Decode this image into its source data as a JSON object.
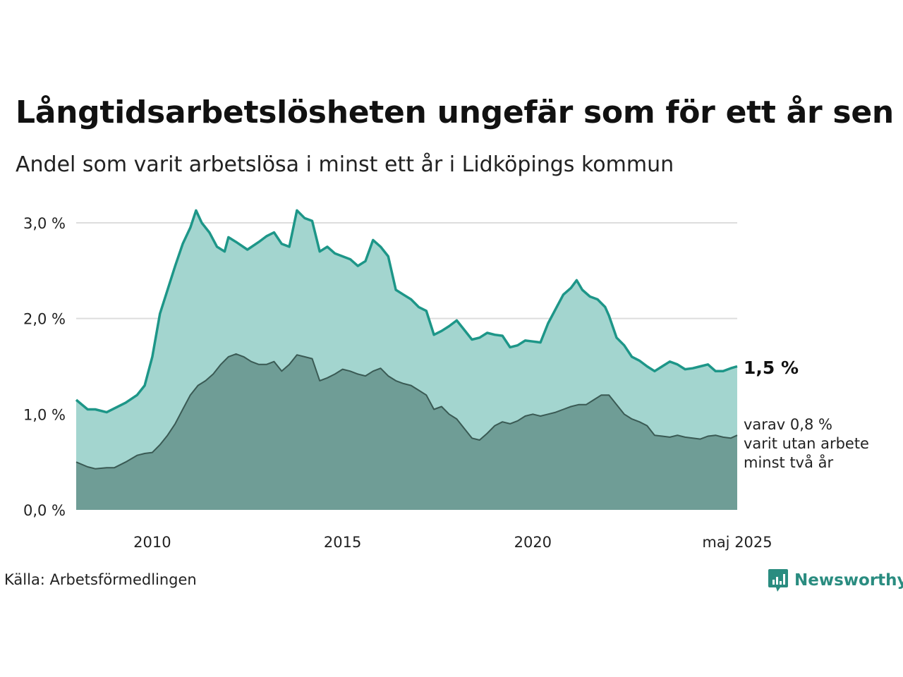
{
  "title": "Långtidsarbetslösheten ungefär som för ett år sen",
  "subtitle": "Andel som varit arbetslösa i minst ett år i Lidköpings kommun",
  "source": "Källa: Arbetsförmedlingen",
  "brand": {
    "name": "Newsworthy",
    "icon": "newsworthy-logo-icon",
    "color": "#2a8c80"
  },
  "annotations": {
    "last_value": "1,5 %",
    "note_lines": [
      "varav 0,8 %",
      "varit utan arbete",
      "minst två år"
    ]
  },
  "colors": {
    "series1_line": "#1d9688",
    "series1_fill": "#a3d5cf",
    "series2_line": "#3a5a54",
    "series2_fill": "#6f9d96",
    "grid": "#dddddd"
  },
  "chart_data": {
    "type": "area",
    "y_ticks": [
      {
        "value": 0,
        "label": "0,0 %"
      },
      {
        "value": 1,
        "label": "1,0 %"
      },
      {
        "value": 2,
        "label": "2,0 %"
      },
      {
        "value": 3,
        "label": "3,0 %"
      }
    ],
    "x_ticks": [
      {
        "value": 2010,
        "label": "2010"
      },
      {
        "value": 2015,
        "label": "2015"
      },
      {
        "value": 2020,
        "label": "2020"
      },
      {
        "value": 2025.37,
        "label": "maj 2025"
      }
    ],
    "xlim": [
      2008.0,
      2025.37
    ],
    "ylim": [
      0,
      3.2
    ],
    "grid": true,
    "series": [
      {
        "values": [
          [
            2008.0,
            1.15
          ],
          [
            2008.3,
            1.05
          ],
          [
            2008.5,
            1.05
          ],
          [
            2008.8,
            1.02
          ],
          [
            2009.0,
            1.06
          ],
          [
            2009.3,
            1.12
          ],
          [
            2009.6,
            1.2
          ],
          [
            2009.8,
            1.3
          ],
          [
            2010.0,
            1.6
          ],
          [
            2010.2,
            2.05
          ],
          [
            2010.4,
            2.3
          ],
          [
            2010.6,
            2.55
          ],
          [
            2010.8,
            2.78
          ],
          [
            2011.0,
            2.95
          ],
          [
            2011.15,
            3.13
          ],
          [
            2011.3,
            3.0
          ],
          [
            2011.5,
            2.9
          ],
          [
            2011.7,
            2.75
          ],
          [
            2011.9,
            2.7
          ],
          [
            2012.0,
            2.85
          ],
          [
            2012.2,
            2.8
          ],
          [
            2012.5,
            2.72
          ],
          [
            2012.8,
            2.8
          ],
          [
            2013.0,
            2.86
          ],
          [
            2013.2,
            2.9
          ],
          [
            2013.4,
            2.78
          ],
          [
            2013.6,
            2.75
          ],
          [
            2013.8,
            3.13
          ],
          [
            2014.0,
            3.05
          ],
          [
            2014.2,
            3.02
          ],
          [
            2014.4,
            2.7
          ],
          [
            2014.6,
            2.75
          ],
          [
            2014.8,
            2.68
          ],
          [
            2015.0,
            2.65
          ],
          [
            2015.2,
            2.62
          ],
          [
            2015.4,
            2.55
          ],
          [
            2015.6,
            2.6
          ],
          [
            2015.8,
            2.82
          ],
          [
            2016.0,
            2.75
          ],
          [
            2016.2,
            2.65
          ],
          [
            2016.4,
            2.3
          ],
          [
            2016.6,
            2.25
          ],
          [
            2016.8,
            2.2
          ],
          [
            2017.0,
            2.12
          ],
          [
            2017.2,
            2.08
          ],
          [
            2017.4,
            1.83
          ],
          [
            2017.6,
            1.87
          ],
          [
            2017.8,
            1.92
          ],
          [
            2018.0,
            1.98
          ],
          [
            2018.2,
            1.88
          ],
          [
            2018.4,
            1.78
          ],
          [
            2018.6,
            1.8
          ],
          [
            2018.8,
            1.85
          ],
          [
            2019.0,
            1.83
          ],
          [
            2019.2,
            1.82
          ],
          [
            2019.4,
            1.7
          ],
          [
            2019.6,
            1.72
          ],
          [
            2019.8,
            1.77
          ],
          [
            2020.0,
            1.76
          ],
          [
            2020.2,
            1.75
          ],
          [
            2020.4,
            1.95
          ],
          [
            2020.6,
            2.1
          ],
          [
            2020.8,
            2.25
          ],
          [
            2021.0,
            2.32
          ],
          [
            2021.15,
            2.4
          ],
          [
            2021.3,
            2.3
          ],
          [
            2021.5,
            2.23
          ],
          [
            2021.7,
            2.2
          ],
          [
            2021.9,
            2.12
          ],
          [
            2022.0,
            2.03
          ],
          [
            2022.2,
            1.8
          ],
          [
            2022.4,
            1.72
          ],
          [
            2022.6,
            1.6
          ],
          [
            2022.8,
            1.56
          ],
          [
            2023.0,
            1.5
          ],
          [
            2023.2,
            1.45
          ],
          [
            2023.4,
            1.5
          ],
          [
            2023.6,
            1.55
          ],
          [
            2023.8,
            1.52
          ],
          [
            2024.0,
            1.47
          ],
          [
            2024.2,
            1.48
          ],
          [
            2024.4,
            1.5
          ],
          [
            2024.6,
            1.52
          ],
          [
            2024.8,
            1.45
          ],
          [
            2025.0,
            1.45
          ],
          [
            2025.2,
            1.48
          ],
          [
            2025.37,
            1.5
          ]
        ]
      },
      {
        "values": [
          [
            2008.0,
            0.5
          ],
          [
            2008.3,
            0.45
          ],
          [
            2008.5,
            0.43
          ],
          [
            2008.8,
            0.44
          ],
          [
            2009.0,
            0.44
          ],
          [
            2009.3,
            0.5
          ],
          [
            2009.6,
            0.57
          ],
          [
            2009.8,
            0.59
          ],
          [
            2010.0,
            0.6
          ],
          [
            2010.2,
            0.68
          ],
          [
            2010.4,
            0.78
          ],
          [
            2010.6,
            0.9
          ],
          [
            2010.8,
            1.05
          ],
          [
            2011.0,
            1.2
          ],
          [
            2011.2,
            1.3
          ],
          [
            2011.4,
            1.35
          ],
          [
            2011.6,
            1.42
          ],
          [
            2011.8,
            1.52
          ],
          [
            2012.0,
            1.6
          ],
          [
            2012.2,
            1.63
          ],
          [
            2012.4,
            1.6
          ],
          [
            2012.6,
            1.55
          ],
          [
            2012.8,
            1.52
          ],
          [
            2013.0,
            1.52
          ],
          [
            2013.2,
            1.55
          ],
          [
            2013.4,
            1.45
          ],
          [
            2013.6,
            1.52
          ],
          [
            2013.8,
            1.62
          ],
          [
            2014.0,
            1.6
          ],
          [
            2014.2,
            1.58
          ],
          [
            2014.4,
            1.35
          ],
          [
            2014.6,
            1.38
          ],
          [
            2014.8,
            1.42
          ],
          [
            2015.0,
            1.47
          ],
          [
            2015.2,
            1.45
          ],
          [
            2015.4,
            1.42
          ],
          [
            2015.6,
            1.4
          ],
          [
            2015.8,
            1.45
          ],
          [
            2016.0,
            1.48
          ],
          [
            2016.2,
            1.4
          ],
          [
            2016.4,
            1.35
          ],
          [
            2016.6,
            1.32
          ],
          [
            2016.8,
            1.3
          ],
          [
            2017.0,
            1.25
          ],
          [
            2017.2,
            1.2
          ],
          [
            2017.4,
            1.05
          ],
          [
            2017.6,
            1.08
          ],
          [
            2017.8,
            1.0
          ],
          [
            2018.0,
            0.95
          ],
          [
            2018.2,
            0.85
          ],
          [
            2018.4,
            0.75
          ],
          [
            2018.6,
            0.73
          ],
          [
            2018.8,
            0.8
          ],
          [
            2019.0,
            0.88
          ],
          [
            2019.2,
            0.92
          ],
          [
            2019.4,
            0.9
          ],
          [
            2019.6,
            0.93
          ],
          [
            2019.8,
            0.98
          ],
          [
            2020.0,
            1.0
          ],
          [
            2020.2,
            0.98
          ],
          [
            2020.4,
            1.0
          ],
          [
            2020.6,
            1.02
          ],
          [
            2020.8,
            1.05
          ],
          [
            2021.0,
            1.08
          ],
          [
            2021.2,
            1.1
          ],
          [
            2021.4,
            1.1
          ],
          [
            2021.6,
            1.15
          ],
          [
            2021.8,
            1.2
          ],
          [
            2022.0,
            1.2
          ],
          [
            2022.2,
            1.1
          ],
          [
            2022.4,
            1.0
          ],
          [
            2022.6,
            0.95
          ],
          [
            2022.8,
            0.92
          ],
          [
            2023.0,
            0.88
          ],
          [
            2023.2,
            0.78
          ],
          [
            2023.4,
            0.77
          ],
          [
            2023.6,
            0.76
          ],
          [
            2023.8,
            0.78
          ],
          [
            2024.0,
            0.76
          ],
          [
            2024.2,
            0.75
          ],
          [
            2024.4,
            0.74
          ],
          [
            2024.6,
            0.77
          ],
          [
            2024.8,
            0.78
          ],
          [
            2025.0,
            0.76
          ],
          [
            2025.2,
            0.75
          ],
          [
            2025.37,
            0.78
          ]
        ]
      }
    ]
  }
}
